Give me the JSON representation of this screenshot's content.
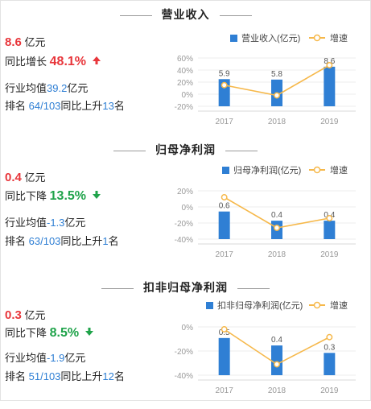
{
  "sections": [
    {
      "title": "营业收入",
      "value": "8.6",
      "value_unit": "亿元",
      "change_label": "同比增长",
      "change_pct": "48.1%",
      "direction": "up",
      "industry_label": "行业均值",
      "industry_value": "39.2",
      "industry_unit": "亿元",
      "rank_label": "排名",
      "rank": "64/103",
      "rank_change_label": "同比上升",
      "rank_change": "13",
      "rank_change_unit": "名",
      "chart_data": {
        "type": "bar",
        "categories": [
          "2017",
          "2018",
          "2019"
        ],
        "series": [
          {
            "name": "营业收入(亿元)",
            "values": [
              5.9,
              5.8,
              8.6
            ]
          },
          {
            "name": "增速",
            "values": [
              15,
              -2,
              48.1
            ]
          }
        ],
        "bar_labels": [
          "5.9",
          "5.8",
          "8.6"
        ],
        "bar_ylim": [
          0,
          10.5
        ],
        "y_ticks": [
          "60%",
          "40%",
          "20%",
          "0%",
          "-20%"
        ],
        "ylim": [
          -20,
          60
        ],
        "bar_color": "#2f7fd4",
        "line_color": "#f6b84a"
      }
    },
    {
      "title": "归母净利润",
      "value": "0.4",
      "value_unit": "亿元",
      "change_label": "同比下降",
      "change_pct": "13.5%",
      "direction": "down",
      "industry_label": "行业均值",
      "industry_value": "-1.3",
      "industry_unit": "亿元",
      "rank_label": "排名",
      "rank": "63/103",
      "rank_change_label": "同比上升",
      "rank_change": "1",
      "rank_change_unit": "名",
      "chart_data": {
        "type": "bar",
        "categories": [
          "2017",
          "2018",
          "2019"
        ],
        "series": [
          {
            "name": "归母净利润(亿元)",
            "values": [
              0.6,
              0.4,
              0.4
            ]
          },
          {
            "name": "增速",
            "values": [
              12,
              -26,
              -14
            ]
          }
        ],
        "bar_labels": [
          "0.6",
          "0.4",
          "0.4"
        ],
        "bar_ylim": [
          0,
          1.05
        ],
        "y_ticks": [
          "20%",
          "0%",
          "-20%",
          "-40%"
        ],
        "ylim": [
          -40,
          20
        ],
        "bar_color": "#2f7fd4",
        "line_color": "#f6b84a"
      }
    },
    {
      "title": "扣非归母净利润",
      "value": "0.3",
      "value_unit": "亿元",
      "change_label": "同比下降",
      "change_pct": "8.5%",
      "direction": "down",
      "industry_label": "行业均值",
      "industry_value": "-1.9",
      "industry_unit": "亿元",
      "rank_label": "排名",
      "rank": "51/103",
      "rank_change_label": "同比上升",
      "rank_change": "12",
      "rank_change_unit": "名",
      "chart_data": {
        "type": "bar",
        "categories": [
          "2017",
          "2018",
          "2019"
        ],
        "series": [
          {
            "name": "扣非归母净利润(亿元)",
            "values": [
              0.5,
              0.4,
              0.3
            ]
          },
          {
            "name": "增速",
            "values": [
              -2,
              -31,
              -8.5
            ]
          }
        ],
        "bar_labels": [
          "0.5",
          "0.4",
          "0.3"
        ],
        "bar_ylim": [
          0,
          0.65
        ],
        "y_ticks": [
          "0%",
          "-20%",
          "-40%"
        ],
        "ylim": [
          -40,
          0
        ],
        "bar_color": "#2f7fd4",
        "line_color": "#f6b84a"
      }
    }
  ]
}
